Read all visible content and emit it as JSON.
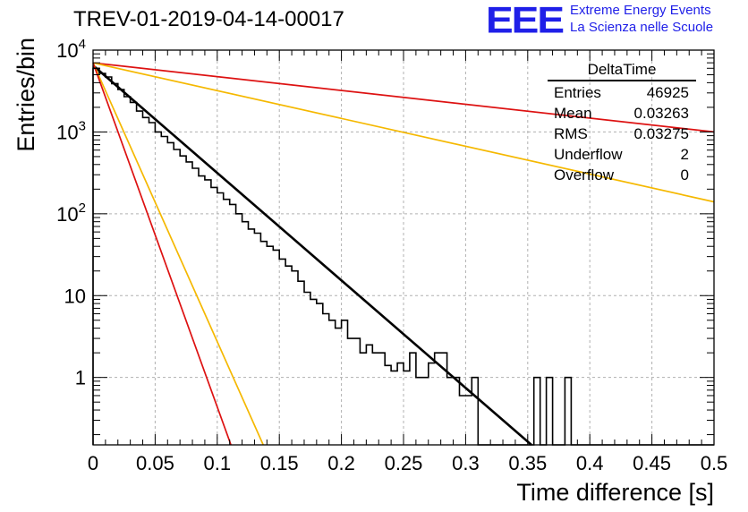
{
  "title": "TREV-01-2019-04-14-00017",
  "logo": {
    "mark": "EEE",
    "line1": "Extreme Energy Events",
    "line2": "La Scienza nelle Scuole",
    "color": "#1f1fe8"
  },
  "stats": {
    "title": "DeltaTime",
    "rows": [
      {
        "label": "Entries",
        "value": "46925"
      },
      {
        "label": "Mean",
        "value": "0.03263"
      },
      {
        "label": "RMS",
        "value": "0.03275"
      },
      {
        "label": "Underflow",
        "value": "2"
      },
      {
        "label": "Overflow",
        "value": "0"
      }
    ]
  },
  "chart_data": {
    "type": "line",
    "xlabel": "Time difference [s]",
    "ylabel": "Entries/bin",
    "xlim": [
      0,
      0.5
    ],
    "ylim": [
      0.15,
      10000
    ],
    "yscale": "log",
    "grid": true,
    "x_ticks": [
      "0",
      "0.05",
      "0.1",
      "0.15",
      "0.2",
      "0.25",
      "0.3",
      "0.35",
      "0.4",
      "0.45",
      "0.5"
    ],
    "y_ticks": [
      {
        "value": 1,
        "label": "1"
      },
      {
        "value": 10,
        "label": "10"
      },
      {
        "value": 100,
        "label": "10^2"
      },
      {
        "value": 1000,
        "label": "10^3"
      },
      {
        "value": 10000,
        "label": "10^4"
      }
    ],
    "histogram": {
      "bin_width": 0.005,
      "color": "#000000",
      "counts": [
        6000,
        5200,
        4700,
        3900,
        3300,
        2700,
        2300,
        1800,
        1500,
        1300,
        1000,
        880,
        740,
        610,
        510,
        430,
        360,
        290,
        260,
        210,
        180,
        150,
        130,
        100,
        80,
        65,
        58,
        46,
        40,
        36,
        28,
        23,
        20,
        15,
        11,
        9,
        8,
        6,
        5,
        4,
        5,
        3,
        3,
        2,
        2.5,
        2,
        2,
        1.4,
        1.2,
        1.5,
        1.2,
        2,
        1,
        1,
        1.5,
        2,
        2,
        1,
        1,
        0.6,
        0.6,
        1,
        0,
        0,
        0,
        0,
        0,
        0,
        0,
        0,
        0,
        1,
        0,
        1,
        0,
        0,
        1,
        0,
        0,
        0,
        0,
        0,
        0,
        0,
        0,
        0,
        0,
        0,
        0,
        0,
        0,
        0,
        0,
        0,
        0,
        0,
        0,
        0,
        0,
        0
      ]
    },
    "series": [
      {
        "style": "fit",
        "color": "#000000",
        "x": [
          0,
          0.353
        ],
        "y": [
          6500,
          0.15
        ]
      },
      {
        "style": "line",
        "color": "#dd1111",
        "x": [
          0,
          0.5
        ],
        "y": [
          7000,
          1000
        ]
      },
      {
        "style": "line",
        "color": "#f5b800",
        "x": [
          0,
          0.5
        ],
        "y": [
          7000,
          140
        ]
      },
      {
        "style": "line",
        "color": "#f5b800",
        "x": [
          0,
          0.137
        ],
        "y": [
          7000,
          0.15
        ]
      },
      {
        "style": "line",
        "color": "#dd1111",
        "x": [
          0,
          0.111
        ],
        "y": [
          7000,
          0.15
        ]
      }
    ]
  }
}
